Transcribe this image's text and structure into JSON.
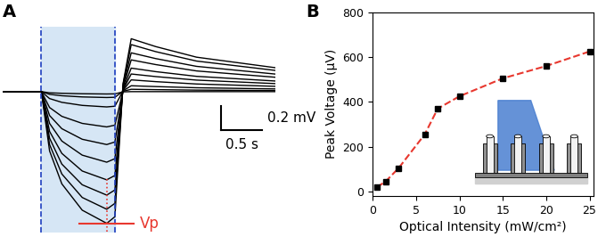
{
  "chart_data": [
    {
      "panel": "A",
      "type": "line",
      "color": "#000000",
      "x": [
        -0.47,
        0,
        0.1,
        0.25,
        0.5,
        0.8,
        0.9,
        1.0,
        1.1,
        1.4,
        1.9,
        2.87
      ],
      "series": [
        {
          "values": [
            0,
            0,
            -0.01,
            -0.014,
            -0.018,
            -0.02,
            -0.019,
            -0.002,
            0,
            0,
            0,
            0
          ]
        },
        {
          "values": [
            0,
            0,
            -0.023,
            -0.035,
            -0.045,
            -0.05,
            -0.048,
            0.003,
            0.02,
            0.017,
            0.013,
            0.009
          ]
        },
        {
          "values": [
            0,
            0,
            -0.059,
            -0.091,
            -0.117,
            -0.13,
            -0.124,
            0.007,
            0.05,
            0.043,
            0.033,
            0.023
          ]
        },
        {
          "values": [
            0,
            0,
            -0.135,
            -0.21,
            -0.27,
            -0.3,
            -0.285,
            0.01,
            0.1,
            0.085,
            0.065,
            0.045
          ]
        },
        {
          "values": [
            0,
            0,
            -0.203,
            -0.315,
            -0.405,
            -0.45,
            -0.428,
            0.015,
            0.15,
            0.128,
            0.098,
            0.068
          ]
        },
        {
          "values": [
            0,
            0,
            -0.27,
            -0.42,
            -0.54,
            -0.6,
            -0.57,
            0.02,
            0.2,
            0.17,
            0.13,
            0.09
          ]
        },
        {
          "values": [
            0,
            0,
            -0.338,
            -0.525,
            -0.675,
            -0.75,
            -0.713,
            0.033,
            0.27,
            0.23,
            0.176,
            0.122
          ]
        },
        {
          "values": [
            0,
            0,
            -0.396,
            -0.616,
            -0.792,
            -0.88,
            -0.836,
            0.044,
            0.33,
            0.281,
            0.215,
            0.149
          ]
        },
        {
          "values": [
            0,
            0,
            -0.45,
            -0.7,
            -0.9,
            -1.0,
            -0.95,
            0.06,
            0.4,
            0.34,
            0.26,
            0.18
          ]
        },
        {
          "values": [
            0,
            0,
            -0.504,
            -0.784,
            -1.008,
            -1.12,
            -1.064,
            0.068,
            0.45,
            0.383,
            0.293,
            0.203
          ]
        }
      ],
      "xlim": [
        -0.47,
        2.87
      ],
      "ylim": [
        -1.2,
        0.55
      ],
      "tick_labels": false,
      "stimulus": [
        0,
        0.9
      ],
      "vp": {
        "label": "Vp",
        "time": 0.8
      },
      "scale_bar": {
        "x": 0.5,
        "y": 0.2,
        "x_label": "0.5 s",
        "y_label": "0.2 mV"
      }
    },
    {
      "panel": "B",
      "type": "scatter",
      "x": [
        0.5,
        1.5,
        3,
        6,
        7.5,
        10,
        15,
        20,
        25
      ],
      "series": [
        {
          "type": "scatter",
          "color": "#000000",
          "marker": "square",
          "values": [
            20,
            45,
            105,
            255,
            370,
            425,
            505,
            560,
            625
          ]
        },
        {
          "type": "line",
          "color": "#e8382f",
          "line_style": "dashed",
          "values": [
            20,
            45,
            105,
            255,
            370,
            425,
            505,
            560,
            625
          ]
        }
      ],
      "xlabel": "Optical Intensity (mW/cm²)",
      "ylabel": "Peak Voltage (μV)",
      "xlim": [
        0,
        25.5
      ],
      "ylim": [
        -20,
        800
      ],
      "xticks": [
        0,
        5,
        10,
        15,
        20,
        25
      ],
      "yticks": [
        0,
        200,
        400,
        600,
        800
      ]
    }
  ]
}
